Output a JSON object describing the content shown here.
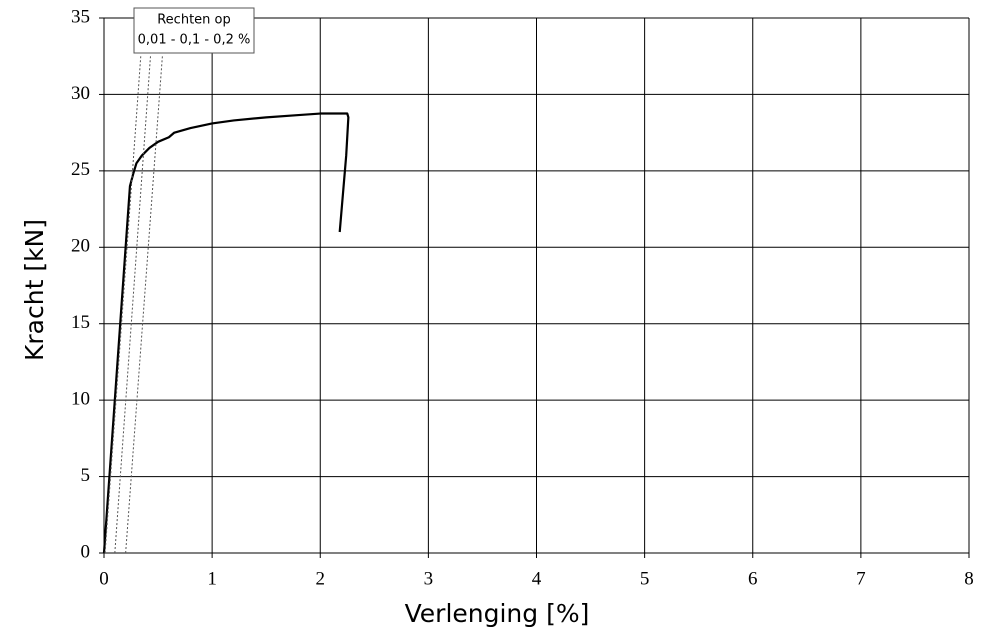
{
  "chart_data": {
    "type": "line",
    "xlabel": "Verlenging [%]",
    "ylabel": "Kracht [kN]",
    "annotation": {
      "title": "Rechten op",
      "text": "0,01 - 0,1 - 0,2 %"
    },
    "xlim": [
      0,
      8
    ],
    "ylim": [
      0,
      35
    ],
    "xticks": [
      0,
      1,
      2,
      3,
      4,
      5,
      6,
      7,
      8
    ],
    "yticks": [
      0,
      5,
      10,
      15,
      20,
      25,
      30,
      35
    ],
    "grid": true,
    "series": [
      {
        "color": "#000000",
        "style": "solid",
        "x": [
          0,
          0.05,
          0.1,
          0.15,
          0.2,
          0.24,
          0.27,
          0.3,
          0.35,
          0.42,
          0.5,
          0.6,
          0.65,
          0.8,
          1.0,
          1.2,
          1.5,
          1.8,
          2.0,
          2.1,
          2.25,
          2.26,
          2.24,
          2.21,
          2.18
        ],
        "values": [
          0,
          5,
          10,
          15,
          20,
          24,
          24.8,
          25.5,
          26,
          26.5,
          26.9,
          27.2,
          27.5,
          27.8,
          28.1,
          28.3,
          28.5,
          28.65,
          28.75,
          28.75,
          28.75,
          28.5,
          26,
          23.5,
          21
        ]
      },
      {
        "color": "#555555",
        "style": "dotted",
        "x": [
          0.01,
          0.34
        ],
        "values": [
          0,
          32.5
        ]
      },
      {
        "color": "#555555",
        "style": "dotted",
        "x": [
          0.1,
          0.43
        ],
        "values": [
          0,
          32.5
        ]
      },
      {
        "color": "#555555",
        "style": "dotted",
        "x": [
          0.2,
          0.54
        ],
        "values": [
          0,
          32.5
        ]
      }
    ]
  }
}
